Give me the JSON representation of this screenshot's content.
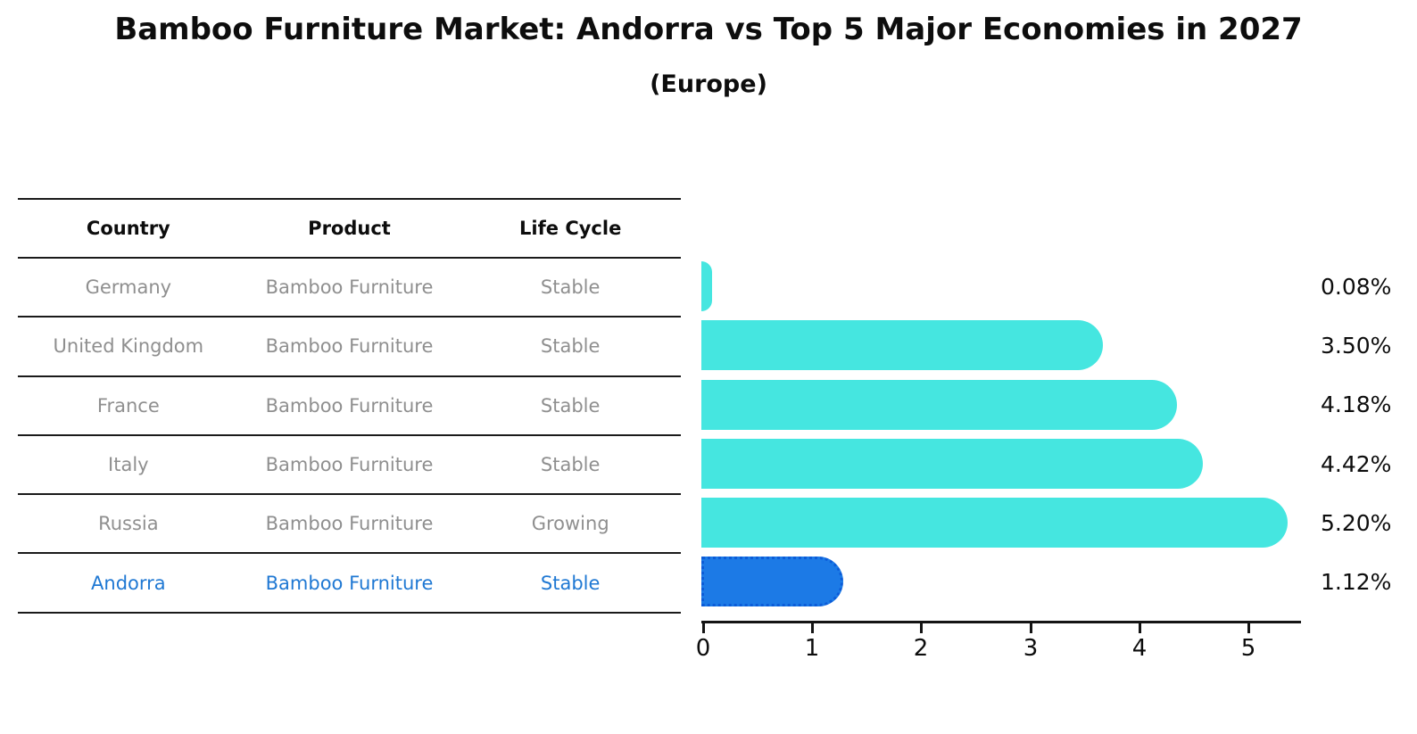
{
  "title": "Bamboo Furniture Market: Andorra vs Top 5 Major Economies in 2027",
  "subtitle": "(Europe)",
  "colors": {
    "bar": "#45E6E0",
    "highlight_bar": "#1C7AE6",
    "highlight_bar_border": "#0C5CD8",
    "row_text": "#8f8f8f",
    "highlight_text": "#1f78d3",
    "table_line": "#1a1a1a",
    "axis": "#141414"
  },
  "table": {
    "headers": [
      "Country",
      "Product",
      "Life Cycle"
    ],
    "rows": [
      {
        "country": "Germany",
        "product": "Bamboo Furniture",
        "life_cycle": "Stable",
        "highlight": false
      },
      {
        "country": "United Kingdom",
        "product": "Bamboo Furniture",
        "life_cycle": "Stable",
        "highlight": false
      },
      {
        "country": "France",
        "product": "Bamboo Furniture",
        "life_cycle": "Stable",
        "highlight": false
      },
      {
        "country": "Italy",
        "product": "Bamboo Furniture",
        "life_cycle": "Stable",
        "highlight": false
      },
      {
        "country": "Russia",
        "product": "Bamboo Furniture",
        "life_cycle": "Growing",
        "highlight": false
      },
      {
        "country": "Andorra",
        "product": "Bamboo Furniture",
        "life_cycle": "Stable",
        "highlight": true
      }
    ]
  },
  "chart_data": {
    "type": "bar",
    "orientation": "horizontal",
    "title": "Bamboo Furniture Market: Andorra vs Top 5 Major Economies in 2027 (Europe)",
    "categories": [
      "Germany",
      "United Kingdom",
      "France",
      "Italy",
      "Russia",
      "Andorra"
    ],
    "values": [
      0.08,
      3.5,
      4.18,
      4.42,
      5.2,
      1.12
    ],
    "bar_labels": [
      "0.08%",
      "3.50%",
      "4.18%",
      "4.42%",
      "5.20%",
      "1.12%"
    ],
    "highlight_category": "Andorra",
    "xlabel": "",
    "ylabel": "",
    "xlim": [
      0,
      5.5
    ],
    "x_ticks": [
      0,
      1,
      2,
      3,
      4,
      5
    ],
    "x_tick_labels": [
      "0",
      "1",
      "2",
      "3",
      "4",
      "5"
    ],
    "grid": false,
    "legend": false
  }
}
